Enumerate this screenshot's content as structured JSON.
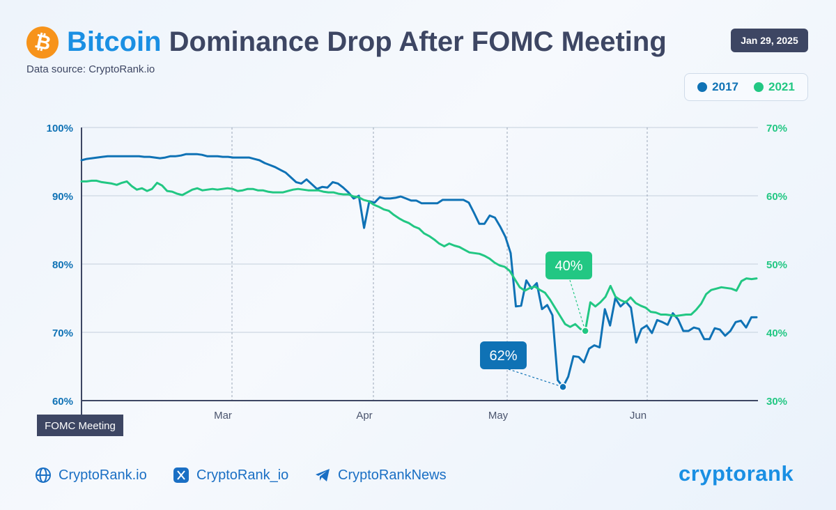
{
  "header": {
    "title_accent": "Bitcoin",
    "title_rest": " Dominance Drop After FOMC Meeting",
    "subtitle": "Data source: CryptoRank.io",
    "date": "Jan 29, 2025",
    "btc_symbol": "₿"
  },
  "legend": [
    {
      "label": "2017",
      "color": "#0f72b5"
    },
    {
      "label": "2021",
      "color": "#22c783"
    }
  ],
  "footer": {
    "website": "CryptoRank.io",
    "x_handle": "CryptoRank_io",
    "telegram": "CryptoRankNews",
    "brand": "cryptorank"
  },
  "colors": {
    "series_2017": "#0f72b5",
    "series_2021": "#22c783",
    "text_dark": "#3d4663",
    "accent": "#1a8fe3"
  },
  "chart_data": {
    "type": "line",
    "title": "Bitcoin Dominance Drop After FOMC Meeting",
    "x_ticks": [
      "Mar",
      "Apr",
      "May",
      "Jun"
    ],
    "x_start_label": "FOMC Meeting",
    "y_left": {
      "ticks": [
        "100%",
        "90%",
        "80%",
        "70%",
        "60%"
      ],
      "range": [
        60,
        100
      ],
      "series": "2017"
    },
    "y_right": {
      "ticks": [
        "70%",
        "60%",
        "50%",
        "40%",
        "30%"
      ],
      "range": [
        30,
        70
      ],
      "series": "2021"
    },
    "grid": true,
    "legend_position": "top-right",
    "series": [
      {
        "name": "2017",
        "axis": "left",
        "values": [
          95.2,
          95.4,
          95.5,
          95.6,
          95.7,
          95.8,
          95.8,
          95.8,
          95.8,
          95.8,
          95.8,
          95.8,
          95.7,
          95.7,
          95.6,
          95.5,
          95.6,
          95.8,
          95.8,
          95.9,
          96.1,
          96.1,
          96.1,
          96.0,
          95.8,
          95.8,
          95.8,
          95.7,
          95.7,
          95.6,
          95.6,
          95.6,
          95.6,
          95.4,
          95.2,
          94.8,
          94.5,
          94.2,
          93.8,
          93.4,
          92.7,
          92.0,
          91.8,
          92.4,
          91.7,
          91.0,
          91.3,
          91.2,
          92.0,
          91.8,
          91.2,
          90.5,
          89.6,
          90.0,
          85.3,
          89.2,
          89.0,
          89.8,
          89.6,
          89.6,
          89.7,
          89.9,
          89.6,
          89.3,
          89.3,
          88.9,
          88.9,
          88.9,
          88.9,
          89.4,
          89.4,
          89.4,
          89.4,
          89.4,
          89.0,
          87.5,
          85.9,
          85.9,
          87.1,
          86.8,
          85.5,
          84.0,
          81.6,
          73.8,
          73.9,
          77.6,
          76.4,
          77.2,
          73.4,
          74.0,
          72.5,
          63.0,
          62.0,
          63.5,
          66.5,
          66.4,
          65.6,
          67.6,
          68.1,
          67.8,
          73.4,
          71.0,
          75.0,
          73.8,
          74.5,
          73.6,
          68.5,
          70.5,
          71.0,
          69.9,
          71.8,
          71.5,
          71.1,
          72.8,
          71.9,
          70.2,
          70.2,
          70.7,
          70.5,
          69.0,
          69.0,
          70.6,
          70.4,
          69.5,
          70.2,
          71.5,
          71.7,
          70.7,
          72.2,
          72.2
        ],
        "annotation": {
          "label": "62%",
          "index": 92,
          "value": 62.0
        }
      },
      {
        "name": "2021",
        "axis": "right",
        "values": [
          62.1,
          62.1,
          62.2,
          62.2,
          62.0,
          61.9,
          61.8,
          61.6,
          61.9,
          62.1,
          61.4,
          60.9,
          61.1,
          60.7,
          61.0,
          61.9,
          61.5,
          60.7,
          60.6,
          60.3,
          60.1,
          60.5,
          60.9,
          61.1,
          60.8,
          60.9,
          61.0,
          60.9,
          61.0,
          61.1,
          61.0,
          60.7,
          60.8,
          61.0,
          61.0,
          60.8,
          60.8,
          60.6,
          60.5,
          60.5,
          60.5,
          60.7,
          60.9,
          61.0,
          60.9,
          60.8,
          60.8,
          60.8,
          60.6,
          60.5,
          60.5,
          60.3,
          60.2,
          60.2,
          59.9,
          59.8,
          59.4,
          59.2,
          58.7,
          58.4,
          58.0,
          57.8,
          57.2,
          56.7,
          56.3,
          56.0,
          55.5,
          55.2,
          54.5,
          54.1,
          53.6,
          53.0,
          52.6,
          53.0,
          52.7,
          52.5,
          52.1,
          51.7,
          51.6,
          51.5,
          51.2,
          50.8,
          50.2,
          49.8,
          49.6,
          49.0,
          47.8,
          46.6,
          46.1,
          46.5,
          46.7,
          46.2,
          45.8,
          44.8,
          43.6,
          42.4,
          41.2,
          40.8,
          41.2,
          40.5,
          40.2,
          44.4,
          43.8,
          44.4,
          45.2,
          46.8,
          45.2,
          44.7,
          44.4,
          45.1,
          44.3,
          43.9,
          43.6,
          43.0,
          42.9,
          42.6,
          42.6,
          42.5,
          42.4,
          42.5,
          42.6,
          42.6,
          43.3,
          44.2,
          45.6,
          46.2,
          46.4,
          46.6,
          46.5,
          46.4,
          46.1,
          47.5,
          47.9,
          47.8,
          47.9
        ],
        "annotation": {
          "label": "40%",
          "index": 100,
          "value": 40.2
        }
      }
    ]
  }
}
